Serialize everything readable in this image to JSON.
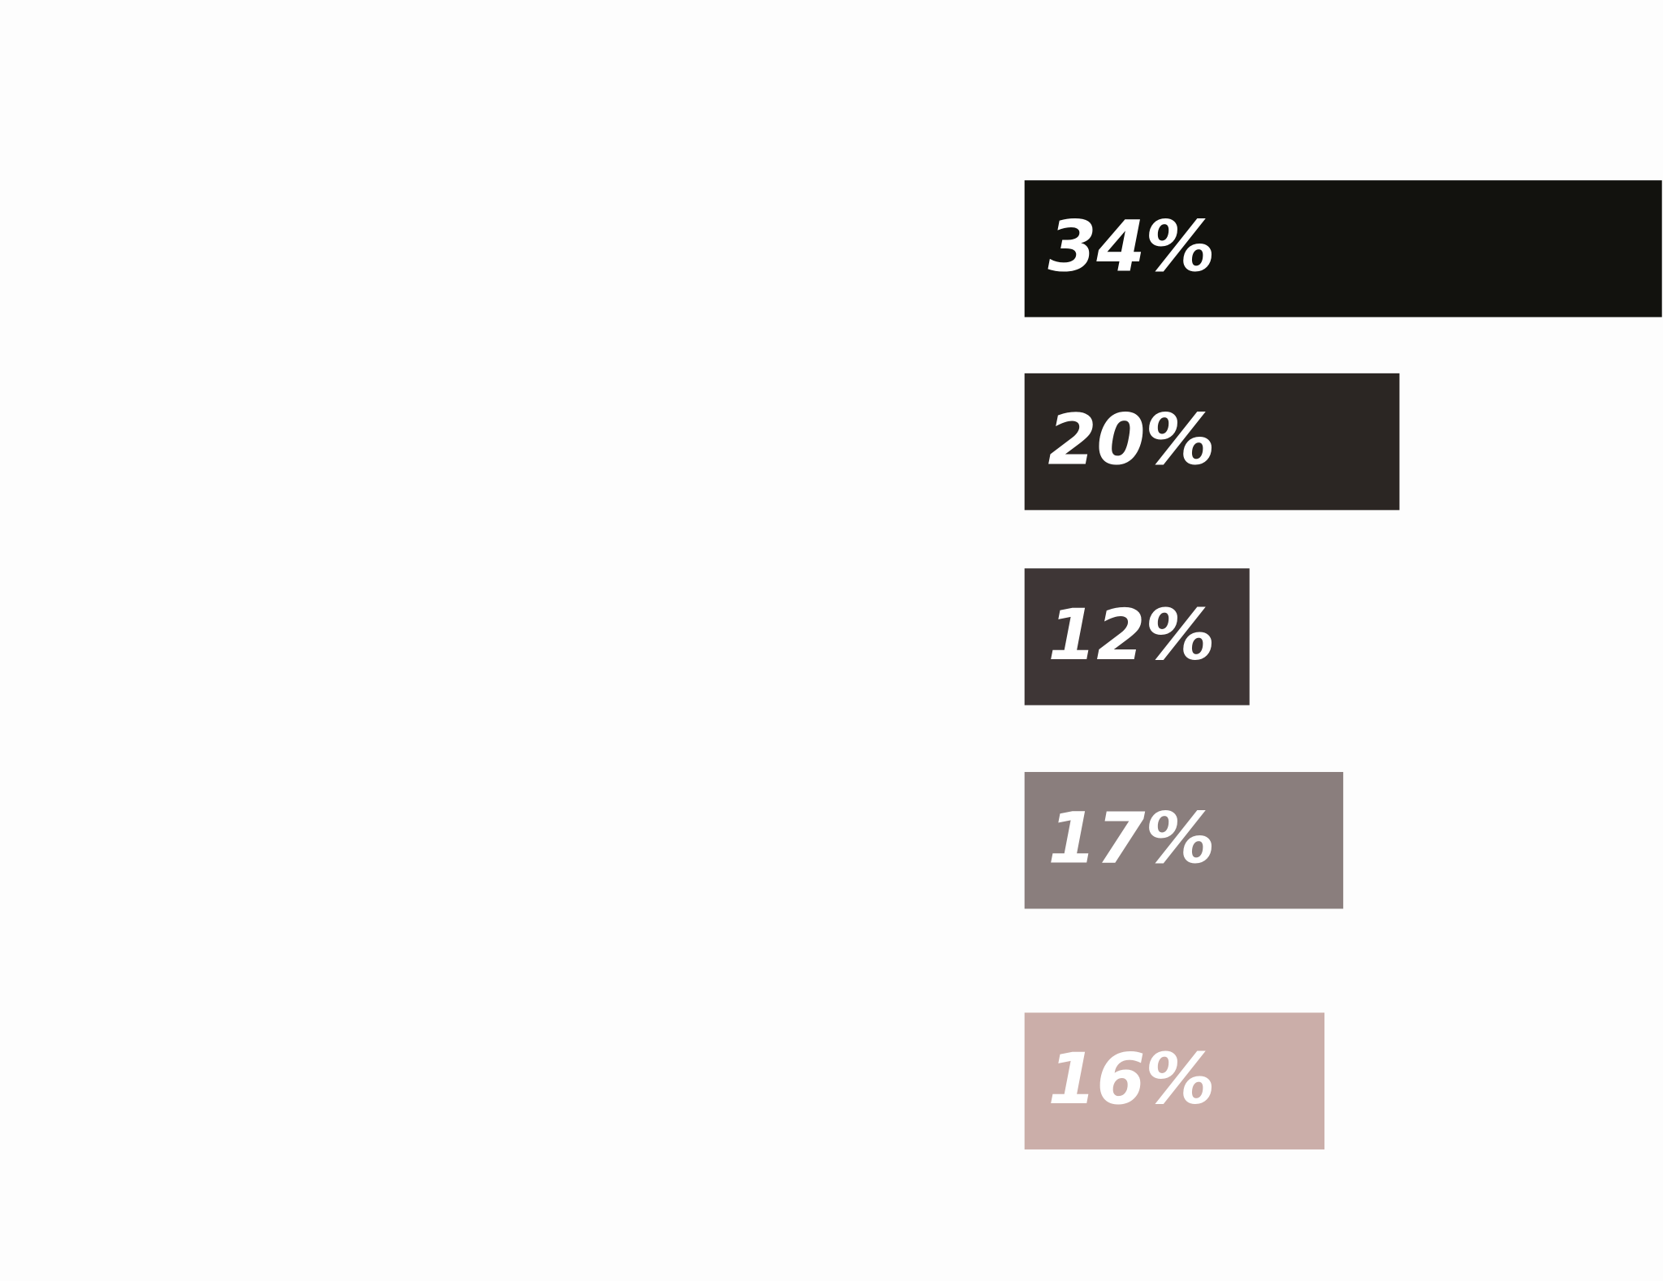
{
  "chart_data": {
    "type": "bar",
    "orientation": "horizontal",
    "values": [
      34,
      20,
      12,
      17,
      16
    ],
    "value_labels": [
      "34%",
      "20%",
      "12%",
      "17%",
      "16%"
    ],
    "colors": [
      "#12120e",
      "#2b2623",
      "#3e3636",
      "#8a7e7d",
      "#cbaea9"
    ]
  }
}
